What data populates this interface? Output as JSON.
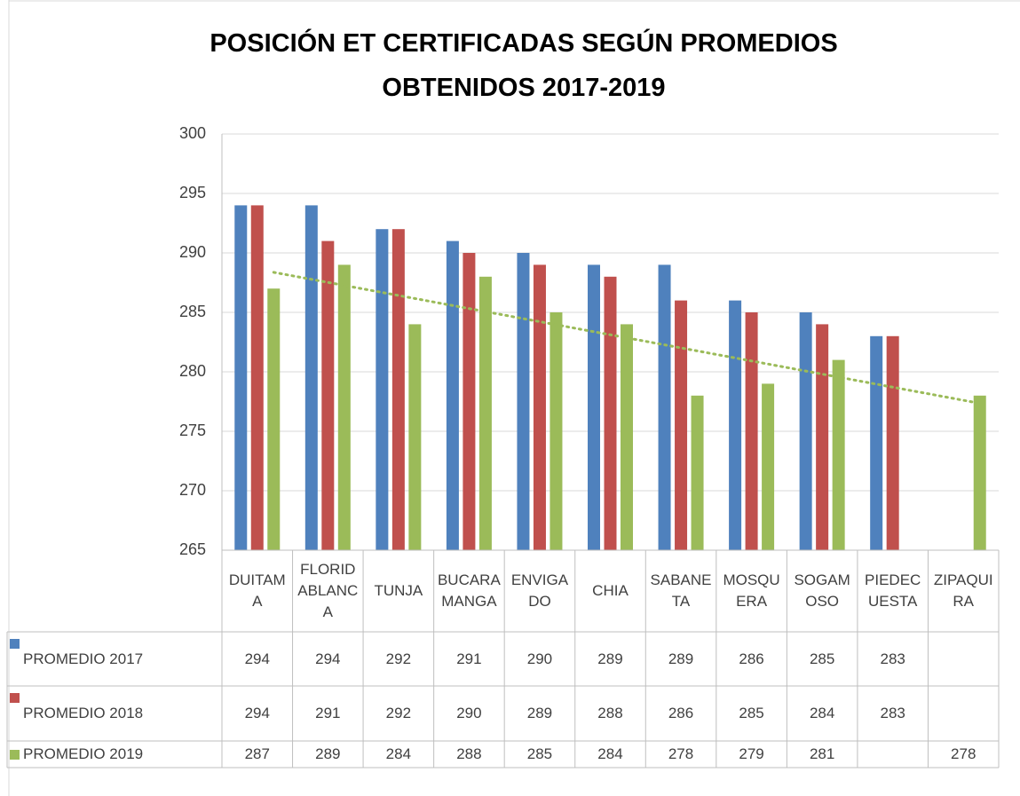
{
  "chart_data": {
    "type": "bar",
    "title": "POSICIÓN ET CERTIFICADAS SEGÚN PROMEDIOS OBTENIDOS 2017-2019",
    "categories": [
      "DUITAMA",
      "FLORIDABLANCA",
      "TUNJA",
      "BUCARAMANGA",
      "ENVIGADO",
      "CHIA",
      "SABANETA",
      "MOSQUERA",
      "SOGAMOSO",
      "PIEDECUESTA",
      "ZIPAQUIRA"
    ],
    "series": [
      {
        "name": "PROMEDIO 2017",
        "color": "#4f81bd",
        "values": [
          294,
          294,
          292,
          291,
          290,
          289,
          289,
          286,
          285,
          283,
          null
        ]
      },
      {
        "name": "PROMEDIO 2018",
        "color": "#c0504d",
        "values": [
          294,
          291,
          292,
          290,
          289,
          288,
          286,
          285,
          284,
          283,
          null
        ]
      },
      {
        "name": "PROMEDIO 2019",
        "color": "#9bbb59",
        "values": [
          287,
          289,
          284,
          288,
          285,
          284,
          278,
          279,
          281,
          null,
          278
        ]
      }
    ],
    "ylim": [
      265,
      300
    ],
    "yticks": [
      265,
      270,
      275,
      280,
      285,
      290,
      295,
      300
    ],
    "grid": true,
    "trendline": true,
    "data_table": true
  }
}
